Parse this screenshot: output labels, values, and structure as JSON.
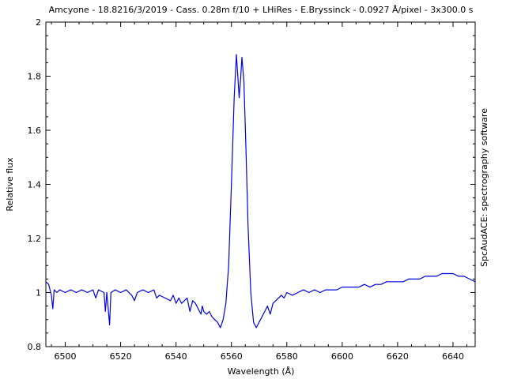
{
  "chart_data": {
    "type": "line",
    "title": "Amcyone - 18.8216/3/2019 - Cass. 0.28m f/10 + LHiRes - E.Bryssinck - 0.0927 Å/pixel - 3x300.0 s",
    "xlabel": "Wavelength (Å)",
    "ylabel": "Relative flux",
    "side_label": "SpcAudACE: spectrography software",
    "xlim": [
      6493,
      6648
    ],
    "ylim": [
      0.8,
      2.0
    ],
    "x_ticks": [
      6500,
      6520,
      6540,
      6560,
      6580,
      6600,
      6620,
      6640
    ],
    "y_ticks": [
      0.8,
      1,
      1.2,
      1.4,
      1.6,
      1.8,
      2
    ],
    "y_tick_labels": [
      "0.8",
      "1",
      "1.2",
      "1.4",
      "1.6",
      "1.8",
      "2"
    ],
    "grid": false,
    "line_color": "#0000e6",
    "series": [
      {
        "points": [
          [
            6493,
            1.04
          ],
          [
            6494,
            1.03
          ],
          [
            6495,
            0.99
          ],
          [
            6495.5,
            0.94
          ],
          [
            6496,
            1.01
          ],
          [
            6497,
            1.0
          ],
          [
            6498,
            1.01
          ],
          [
            6500,
            1.0
          ],
          [
            6502,
            1.01
          ],
          [
            6504,
            1.0
          ],
          [
            6506,
            1.01
          ],
          [
            6508,
            1.0
          ],
          [
            6510,
            1.01
          ],
          [
            6511,
            0.98
          ],
          [
            6512,
            1.01
          ],
          [
            6514,
            1.0
          ],
          [
            6514.5,
            0.93
          ],
          [
            6515,
            1.0
          ],
          [
            6516,
            0.88
          ],
          [
            6516.5,
            1.0
          ],
          [
            6518,
            1.01
          ],
          [
            6520,
            1.0
          ],
          [
            6522,
            1.01
          ],
          [
            6524,
            0.99
          ],
          [
            6525,
            0.97
          ],
          [
            6526,
            1.0
          ],
          [
            6528,
            1.01
          ],
          [
            6530,
            1.0
          ],
          [
            6532,
            1.01
          ],
          [
            6533,
            0.98
          ],
          [
            6534,
            0.99
          ],
          [
            6536,
            0.98
          ],
          [
            6538,
            0.97
          ],
          [
            6539,
            0.99
          ],
          [
            6540,
            0.96
          ],
          [
            6541,
            0.98
          ],
          [
            6542,
            0.96
          ],
          [
            6543,
            0.97
          ],
          [
            6544,
            0.98
          ],
          [
            6545,
            0.93
          ],
          [
            6546,
            0.97
          ],
          [
            6547,
            0.96
          ],
          [
            6548,
            0.94
          ],
          [
            6549,
            0.92
          ],
          [
            6549.5,
            0.95
          ],
          [
            6550,
            0.93
          ],
          [
            6551,
            0.92
          ],
          [
            6552,
            0.93
          ],
          [
            6553,
            0.91
          ],
          [
            6554,
            0.9
          ],
          [
            6555,
            0.89
          ],
          [
            6556,
            0.87
          ],
          [
            6557,
            0.9
          ],
          [
            6558,
            0.96
          ],
          [
            6559,
            1.1
          ],
          [
            6560,
            1.4
          ],
          [
            6561,
            1.72
          ],
          [
            6561.8,
            1.88
          ],
          [
            6562.3,
            1.8
          ],
          [
            6562.8,
            1.72
          ],
          [
            6563.3,
            1.79
          ],
          [
            6563.8,
            1.87
          ],
          [
            6564.5,
            1.78
          ],
          [
            6565.2,
            1.55
          ],
          [
            6566,
            1.25
          ],
          [
            6567,
            1.0
          ],
          [
            6568,
            0.89
          ],
          [
            6569,
            0.87
          ],
          [
            6570,
            0.89
          ],
          [
            6571,
            0.91
          ],
          [
            6572,
            0.93
          ],
          [
            6573,
            0.95
          ],
          [
            6574,
            0.92
          ],
          [
            6575,
            0.96
          ],
          [
            6576,
            0.97
          ],
          [
            6577,
            0.98
          ],
          [
            6578,
            0.99
          ],
          [
            6579,
            0.98
          ],
          [
            6580,
            1.0
          ],
          [
            6582,
            0.99
          ],
          [
            6584,
            1.0
          ],
          [
            6586,
            1.01
          ],
          [
            6588,
            1.0
          ],
          [
            6590,
            1.01
          ],
          [
            6592,
            1.0
          ],
          [
            6594,
            1.01
          ],
          [
            6596,
            1.01
          ],
          [
            6598,
            1.01
          ],
          [
            6600,
            1.02
          ],
          [
            6602,
            1.02
          ],
          [
            6604,
            1.02
          ],
          [
            6606,
            1.02
          ],
          [
            6608,
            1.03
          ],
          [
            6610,
            1.02
          ],
          [
            6612,
            1.03
          ],
          [
            6614,
            1.03
          ],
          [
            6616,
            1.04
          ],
          [
            6618,
            1.04
          ],
          [
            6620,
            1.04
          ],
          [
            6622,
            1.04
          ],
          [
            6624,
            1.05
          ],
          [
            6626,
            1.05
          ],
          [
            6628,
            1.05
          ],
          [
            6630,
            1.06
          ],
          [
            6632,
            1.06
          ],
          [
            6634,
            1.06
          ],
          [
            6636,
            1.07
          ],
          [
            6638,
            1.07
          ],
          [
            6640,
            1.07
          ],
          [
            6642,
            1.06
          ],
          [
            6644,
            1.06
          ],
          [
            6646,
            1.05
          ],
          [
            6648,
            1.04
          ]
        ]
      }
    ]
  }
}
